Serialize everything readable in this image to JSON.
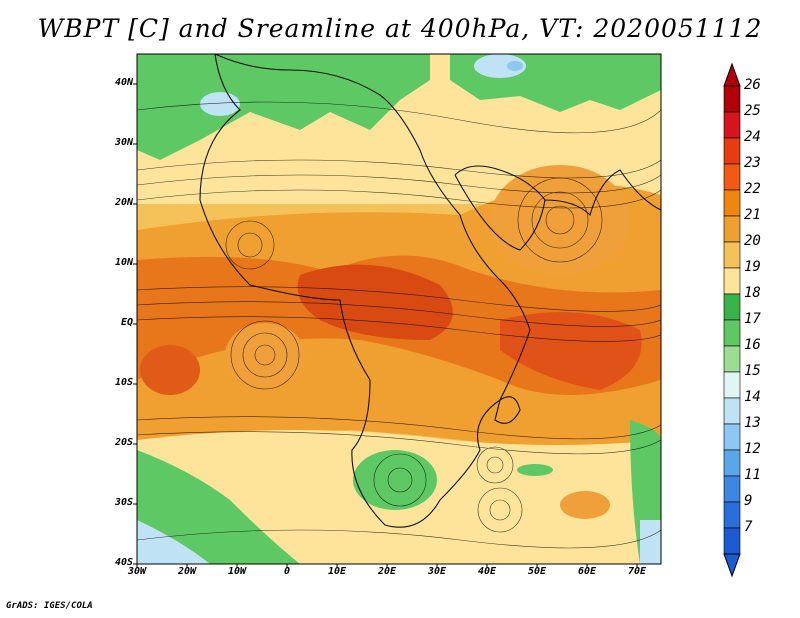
{
  "title": "WBPT [C] and Sreamline at 400hPa, VT: 2020051112",
  "credit": "GrADS: IGES/COLA",
  "lat_labels": [
    "40N",
    "30N",
    "20N",
    "10N",
    "EQ",
    "10S",
    "20S",
    "30S",
    "40S"
  ],
  "lon_labels": [
    "30W",
    "20W",
    "10W",
    "0",
    "10E",
    "20E",
    "30E",
    "40E",
    "50E",
    "60E",
    "70E"
  ],
  "colorbar": {
    "labels": [
      "26",
      "25",
      "24",
      "23",
      "22",
      "21",
      "20",
      "19",
      "18",
      "17",
      "16",
      "15",
      "14",
      "13",
      "12",
      "11",
      "9",
      "7"
    ],
    "colors": [
      "#b0000a",
      "#d5141d",
      "#e83b12",
      "#f05a12",
      "#f0860f",
      "#f0a030",
      "#f5c25a",
      "#fde49a",
      "#3ab24a",
      "#5ec864",
      "#9edc96",
      "#e2f5f5",
      "#bfe2f5",
      "#8ec7f2",
      "#5aa6ea",
      "#3c87e2",
      "#2a6edb",
      "#1c5ad2"
    ]
  },
  "colors": {
    "hot": "#e2561e",
    "warm": "#f0a03a",
    "mild": "#fde49a",
    "green": "#5ec864",
    "cold": "#bfe2f5"
  }
}
